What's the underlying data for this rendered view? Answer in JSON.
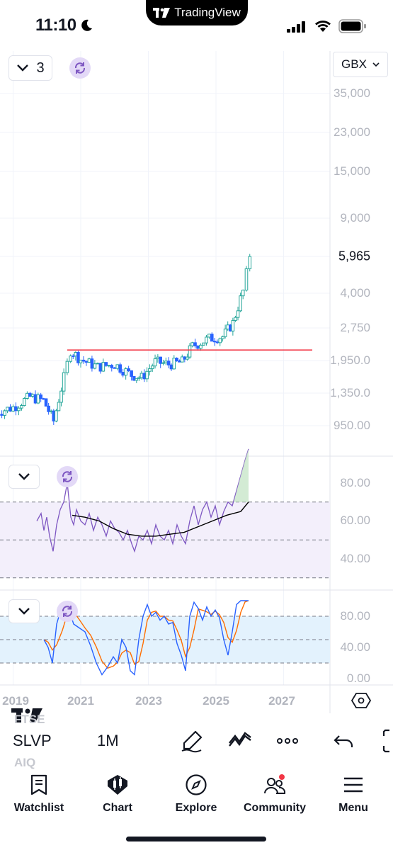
{
  "status_bar": {
    "time": "11:10",
    "island_app": "TradingView"
  },
  "main_pane": {
    "indicator_count": "3",
    "currency": "GBX",
    "price_ticks": [
      "35,000",
      "23,000",
      "15,000",
      "9,000",
      "4,000",
      "2,750",
      "1,950.0",
      "1,350.0",
      "950.00"
    ],
    "current_price": "5,965",
    "resistance_level": 2160
  },
  "rsi_pane": {
    "ticks": [
      "80.00",
      "60.00",
      "40.00"
    ]
  },
  "stoch_pane": {
    "ticks": [
      "80.00",
      "40.00",
      "0.00"
    ]
  },
  "time_axis": [
    "2019",
    "2021",
    "2023",
    "2025",
    "2027"
  ],
  "colors": {
    "up": "#26a69a",
    "down": "#2962ff",
    "resistance": "#f23645",
    "rsi_line": "#7e57c2",
    "rsi_band": "#f3effb",
    "rsi_ma": "#000000",
    "stoch_k": "#2962ff",
    "stoch_d": "#ff6d00",
    "stoch_band": "#e3f2fd"
  },
  "toolbar": {
    "symbol": "SLVP",
    "interval": "1M",
    "ghost_above": "FTSE",
    "ghost_below": "AIQ",
    "icons": [
      "draw-pen-icon",
      "indicators-wave-icon",
      "more-dots-icon",
      "undo-icon",
      "fullscreen-icon"
    ]
  },
  "nav": {
    "items": [
      {
        "label": "Watchlist",
        "icon": "watchlist-icon"
      },
      {
        "label": "Chart",
        "icon": "chart-icon"
      },
      {
        "label": "Explore",
        "icon": "explore-compass-icon"
      },
      {
        "label": "Community",
        "icon": "community-icon"
      },
      {
        "label": "Menu",
        "icon": "menu-icon"
      }
    ]
  },
  "chart_data": {
    "type": "candlestick",
    "interval": "1M",
    "price_scale": "log",
    "x_range": [
      2019,
      2027
    ],
    "price_range": [
      800,
      40000
    ],
    "series": [
      {
        "x": 2018.5,
        "close": 1100
      },
      {
        "x": 2019.0,
        "close": 1160
      },
      {
        "x": 2019.5,
        "close": 1300
      },
      {
        "x": 2019.9,
        "close": 1250
      },
      {
        "x": 2020.2,
        "close": 1000
      },
      {
        "x": 2020.5,
        "close": 1600
      },
      {
        "x": 2020.7,
        "close": 2150
      },
      {
        "x": 2021.0,
        "close": 1950
      },
      {
        "x": 2021.5,
        "close": 1800
      },
      {
        "x": 2022.0,
        "close": 1850
      },
      {
        "x": 2022.5,
        "close": 1650
      },
      {
        "x": 2022.8,
        "close": 1600
      },
      {
        "x": 2023.2,
        "close": 1900
      },
      {
        "x": 2023.6,
        "close": 1850
      },
      {
        "x": 2024.0,
        "close": 1900
      },
      {
        "x": 2024.3,
        "close": 2250
      },
      {
        "x": 2024.8,
        "close": 2450
      },
      {
        "x": 2025.2,
        "close": 2500
      },
      {
        "x": 2025.5,
        "close": 2900
      },
      {
        "x": 2025.8,
        "close": 4100
      },
      {
        "x": 2026.0,
        "close": 5965
      }
    ]
  }
}
